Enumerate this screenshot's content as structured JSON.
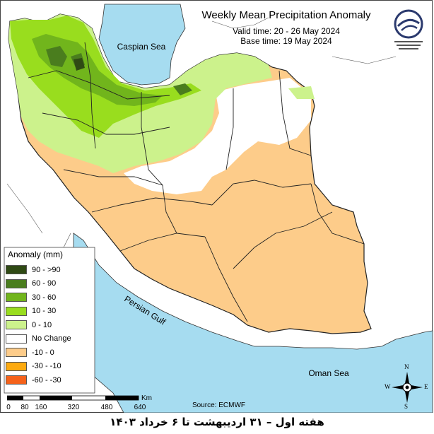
{
  "title": "Weekly Mean Precipitation Anomaly",
  "valid_time": "Valid time: 20 - 26 May 2024",
  "base_time": "Base time: 19 May 2024",
  "labels": {
    "caspian": "Caspian Sea",
    "persian_gulf": "Persian Gulf",
    "oman_sea": "Oman Sea"
  },
  "legend": {
    "title": "Anomaly (mm)",
    "items": [
      {
        "label": "90 - >90",
        "color": "#2f4a14"
      },
      {
        "label": "60 - 90",
        "color": "#4a7d1e"
      },
      {
        "label": "30 - 60",
        "color": "#71b51c"
      },
      {
        "label": "10 - 30",
        "color": "#99dd1e"
      },
      {
        "label": "0 - 10",
        "color": "#ccf28c"
      },
      {
        "label": "No Change",
        "color": "#ffffff"
      },
      {
        "label": "-10 - 0",
        "color": "#fdcc8a"
      },
      {
        "label": "-30 - -10",
        "color": "#fdaa0f"
      },
      {
        "label": "-60 - -30",
        "color": "#f5621a"
      }
    ]
  },
  "scale": {
    "unit": "Km",
    "ticks": [
      "0",
      "80",
      "160",
      "320",
      "480",
      "640"
    ]
  },
  "source": "Source: ECMWF",
  "compass": {
    "n": "N",
    "s": "S",
    "e": "E",
    "w": "W"
  },
  "caption": "هفته اول – ۳۱ اردیبهشت تا ۶ خرداد ۱۴۰۳",
  "colors": {
    "water": "#a6dcf0",
    "land_neighbor": "#ffffff",
    "border": "#222222"
  }
}
